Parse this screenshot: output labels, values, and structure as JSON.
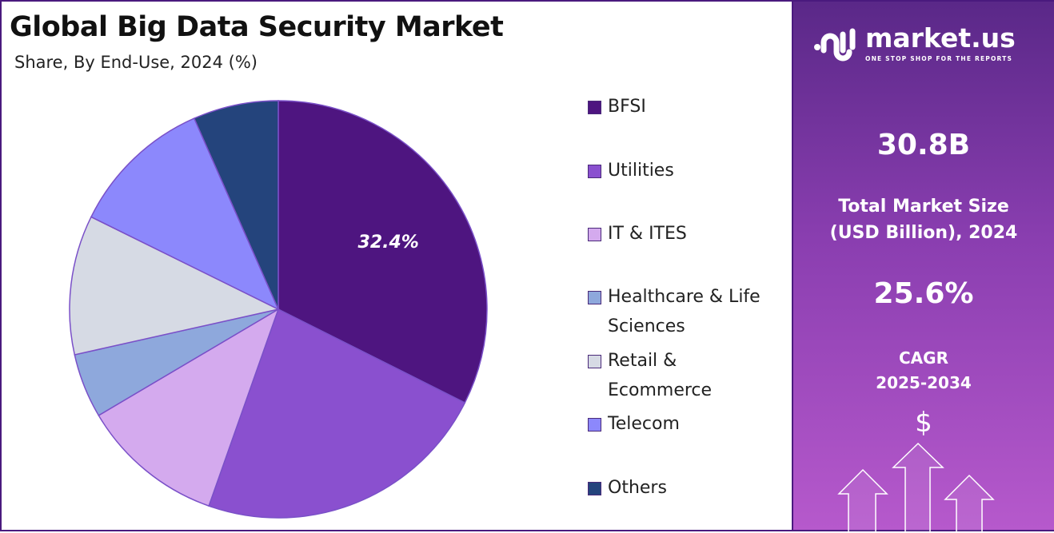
{
  "chart_data": {
    "type": "pie",
    "title": "Global Big Data Security Market",
    "subtitle": "Share, By End-Use, 2024 (%)",
    "legend_position": "right",
    "slices": [
      {
        "label": "BFSI",
        "value": 32.4,
        "color": "#4e1580",
        "data_label": "32.4%"
      },
      {
        "label": "Utilities",
        "value": 23.0,
        "color": "#8a50cf"
      },
      {
        "label": "IT & ITES",
        "value": 11.1,
        "color": "#d4aaee"
      },
      {
        "label": "Healthcare & Life Sciences",
        "value": 5.0,
        "color": "#8ea8dc"
      },
      {
        "label": "Retail & Ecommerce",
        "value": 10.8,
        "color": "#d6dae4"
      },
      {
        "label": "Telecom",
        "value": 11.1,
        "color": "#8c88fc"
      },
      {
        "label": "Others",
        "value": 6.6,
        "color": "#24447c"
      }
    ]
  },
  "legend": [
    {
      "lines": [
        "BFSI"
      ]
    },
    {
      "lines": [
        "Utilities"
      ]
    },
    {
      "lines": [
        "IT & ITES"
      ]
    },
    {
      "lines": [
        "Healthcare & Life",
        "Sciences"
      ]
    },
    {
      "lines": [
        "Retail &",
        "Ecommerce"
      ]
    },
    {
      "lines": [
        "Telecom"
      ]
    },
    {
      "lines": [
        "Others"
      ]
    }
  ],
  "panel": {
    "brand": "market.us",
    "tagline": "ONE STOP SHOP FOR THE REPORTS",
    "market_size": "30.8B",
    "market_size_label_1": "Total Market Size",
    "market_size_label_2": "(USD Billion), 2024",
    "cagr": "25.6%",
    "cagr_label_1": "CAGR",
    "cagr_label_2": "2025-2034",
    "dollar": "$"
  }
}
